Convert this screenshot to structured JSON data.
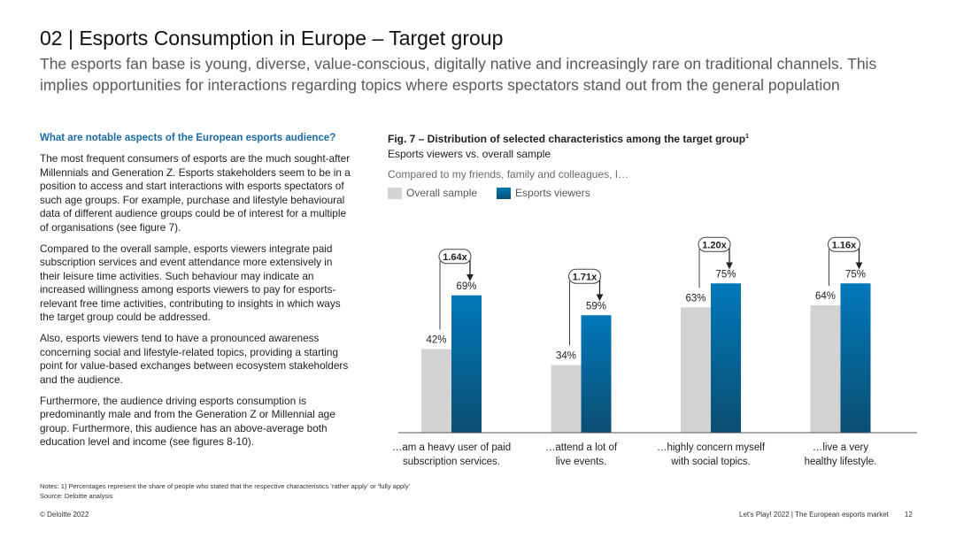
{
  "page": {
    "title": "02 | Esports Consumption in Europe – Target group",
    "subtitle": "The esports fan base is young, diverse, value-conscious, digitally native and increasingly rare on traditional channels. This implies opportunities for interactions regarding topics where esports spectators stand out from the general population"
  },
  "left": {
    "heading": "What are notable aspects of the European esports audience?",
    "paragraphs": [
      "The most frequent consumers of esports are the much sought-after Millennials and Generation Z. Esports stakeholders seem to be in a position to access and start interactions with esports spectators of such age groups. For example, purchase and lifestyle behavioural data of different audience groups could be of interest for a multiple of organisations (see figure 7).",
      "Compared to the overall sample, esports viewers integrate paid subscription services and event attendance more extensively in their leisure time activities. Such behaviour may indicate an increased willingness among esports viewers to pay for esports-relevant free time activities, contributing to insights in which ways the target group could be addressed.",
      "Also, esports viewers tend to have a pronounced awareness concerning social and lifestyle-related topics, providing a starting point for value-based exchanges between ecosystem stakeholders and the audience.",
      "Furthermore, the audience driving esports consumption is predominantly male and from the Generation Z or Millennial age group. Furthermore, this audience has an above-average both education level and income (see figures 8-10)."
    ]
  },
  "figure": {
    "title": "Fig. 7 – Distribution of selected characteristics among the target group",
    "title_sup": "1",
    "subtitle": "Esports viewers vs. overall sample",
    "prompt": "Compared to my friends, family and colleagues, I…"
  },
  "chart_data": {
    "type": "bar",
    "categories": [
      "…am a heavy user of paid subscription services.",
      "…attend a lot of live events.",
      "…highly concern myself with social topics.",
      "…live a very healthy lifestyle."
    ],
    "category_lines": [
      [
        "…am a heavy user of paid",
        "subscription services."
      ],
      [
        "…attend a lot of",
        "live events."
      ],
      [
        "…highly concern myself",
        "with social topics."
      ],
      [
        "…live a very",
        "healthy lifestyle."
      ]
    ],
    "series": [
      {
        "name": "Overall sample",
        "values": [
          42,
          34,
          63,
          64
        ],
        "labels": [
          "42%",
          "34%",
          "63%",
          "64%"
        ],
        "color": "#d3d3d3"
      },
      {
        "name": "Esports viewers",
        "values": [
          69,
          59,
          75,
          75
        ],
        "labels": [
          "69%",
          "59%",
          "75%",
          "75%"
        ],
        "color": "#0076b6",
        "color_dark": "#0b4f74"
      }
    ],
    "multipliers": [
      "1.64x",
      "1.71x",
      "1.20x",
      "1.16x"
    ],
    "ylim": [
      0,
      100
    ],
    "unit": "%",
    "legend_position": "top-left"
  },
  "notes": {
    "line1": "Notes: 1) Percentages represent the share of people who stated that the respective characteristics 'rather apply' or 'fully apply'",
    "line2": "Source: Deloitte analysis"
  },
  "footer": {
    "left": "© Deloitte 2022",
    "right": "Let's Play! 2022 | The European esports market",
    "page": "12"
  }
}
